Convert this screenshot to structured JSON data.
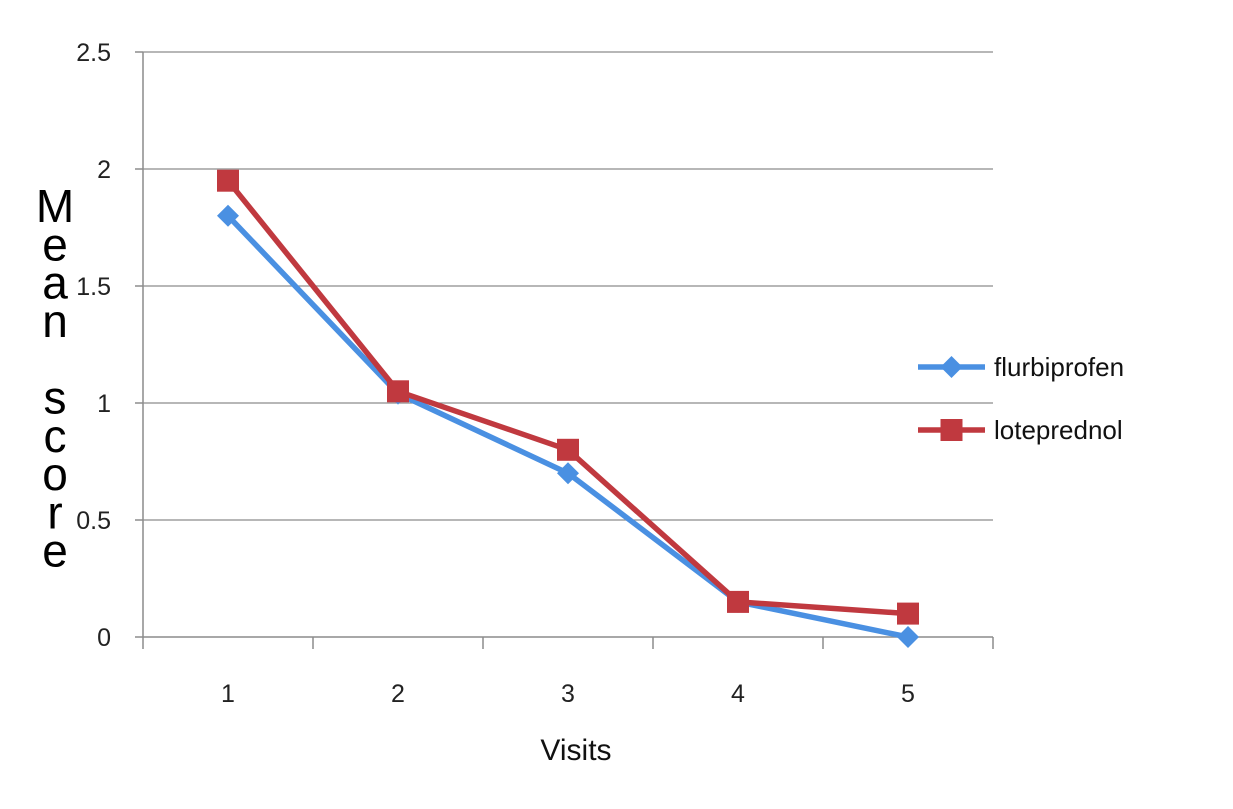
{
  "chart_data": {
    "type": "line",
    "x": [
      1,
      2,
      3,
      4,
      5
    ],
    "categories": [
      "1",
      "2",
      "3",
      "4",
      "5"
    ],
    "series": [
      {
        "name": "flurbiprofen",
        "values": [
          1.8,
          1.04,
          0.7,
          0.15,
          0.0
        ],
        "color": "#4A90E2",
        "marker": "diamond"
      },
      {
        "name": "loteprednol",
        "values": [
          1.95,
          1.05,
          0.8,
          0.15,
          0.1
        ],
        "color": "#C0393F",
        "marker": "square"
      }
    ],
    "title": "",
    "xlabel": "Visits",
    "ylabel": "Mean score",
    "ylim": [
      0,
      2.5
    ],
    "yticks": [
      "0",
      "0.5",
      "1",
      "1.5",
      "2",
      "2.5"
    ],
    "grid": "horizontal",
    "legend_position": "right"
  }
}
